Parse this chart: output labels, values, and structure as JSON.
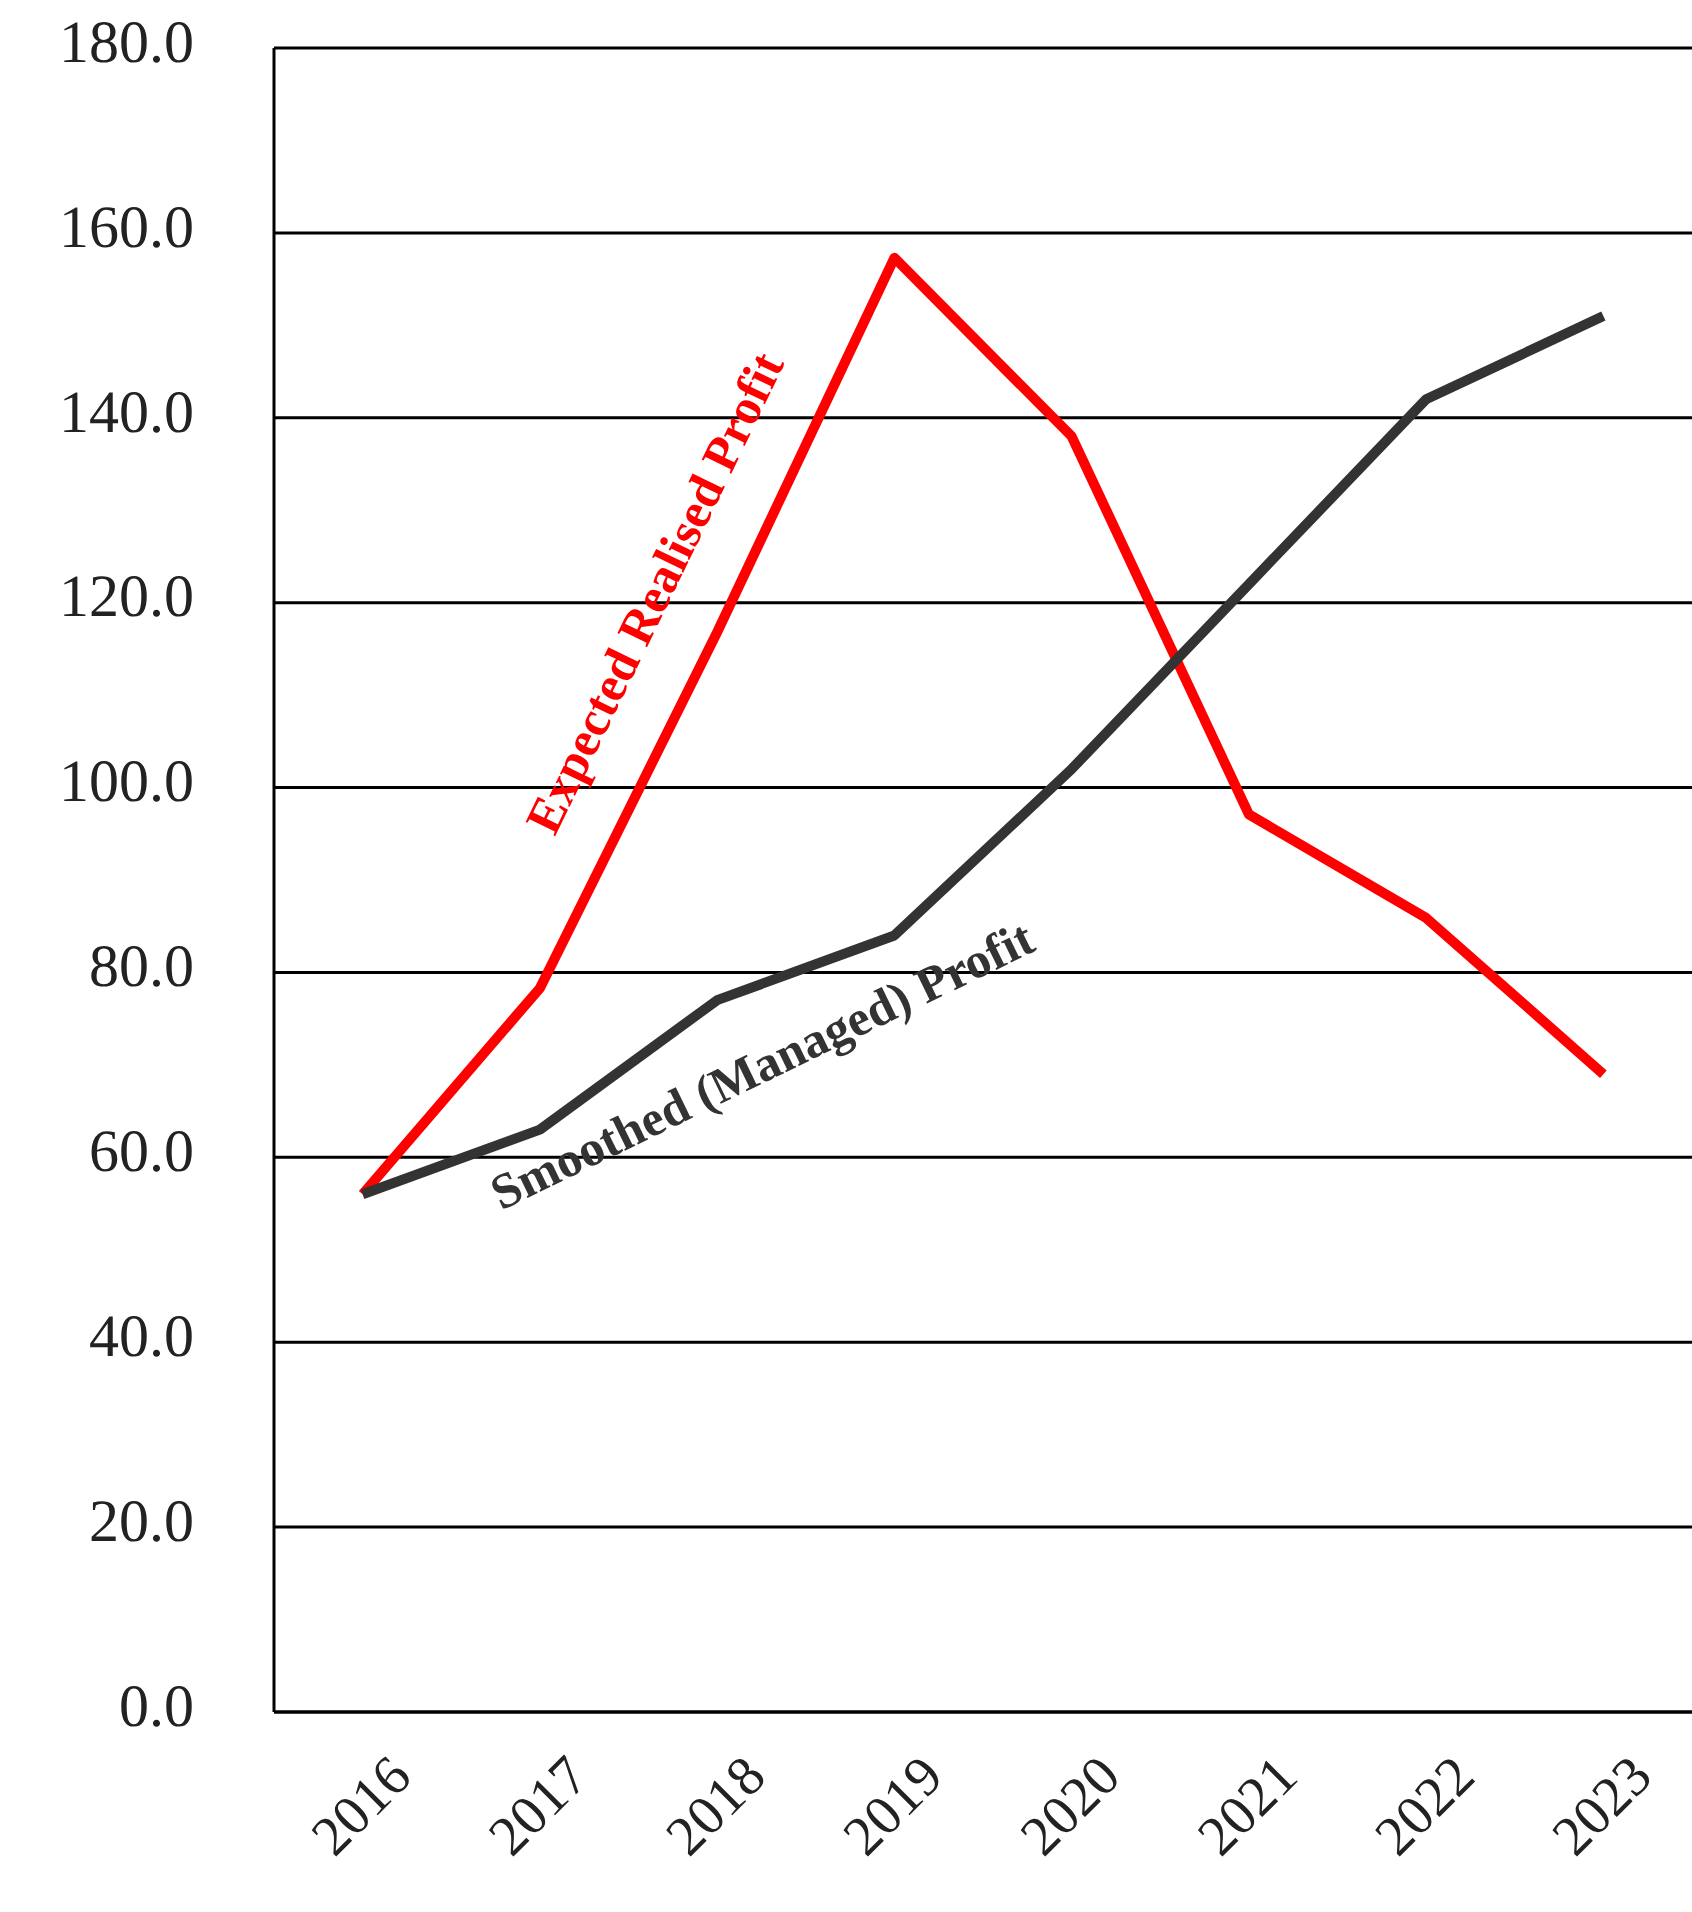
{
  "chart_data": {
    "type": "line",
    "categories": [
      "2016",
      "2017",
      "2018",
      "2019",
      "2020",
      "2021",
      "2022",
      "2023"
    ],
    "series": [
      {
        "name": "Expected Realised Profit",
        "color": "#ff0000",
        "values": [
          56.0,
          78.3,
          116.8,
          157.3,
          138.0,
          97.1,
          85.9,
          69.0
        ]
      },
      {
        "name": "Smoothed (Managed) Profit",
        "color": "#333333",
        "values": [
          56.0,
          63.0,
          77.0,
          84.0,
          102.0,
          122.0,
          142.0,
          151.0
        ]
      }
    ],
    "ylim": [
      0,
      180
    ],
    "yticks": [
      {
        "value": 0,
        "label": "0.0"
      },
      {
        "value": 20,
        "label": "20.0"
      },
      {
        "value": 40,
        "label": "40.0"
      },
      {
        "value": 60,
        "label": "60.0"
      },
      {
        "value": 80,
        "label": "80.0"
      },
      {
        "value": 100,
        "label": "100.0"
      },
      {
        "value": 120,
        "label": "120.0"
      },
      {
        "value": 140,
        "label": "140.0"
      },
      {
        "value": 160,
        "label": "160.0"
      },
      {
        "value": 180,
        "label": "180.0"
      }
    ],
    "grid": "y",
    "marker": "none",
    "line_style": "solid"
  }
}
